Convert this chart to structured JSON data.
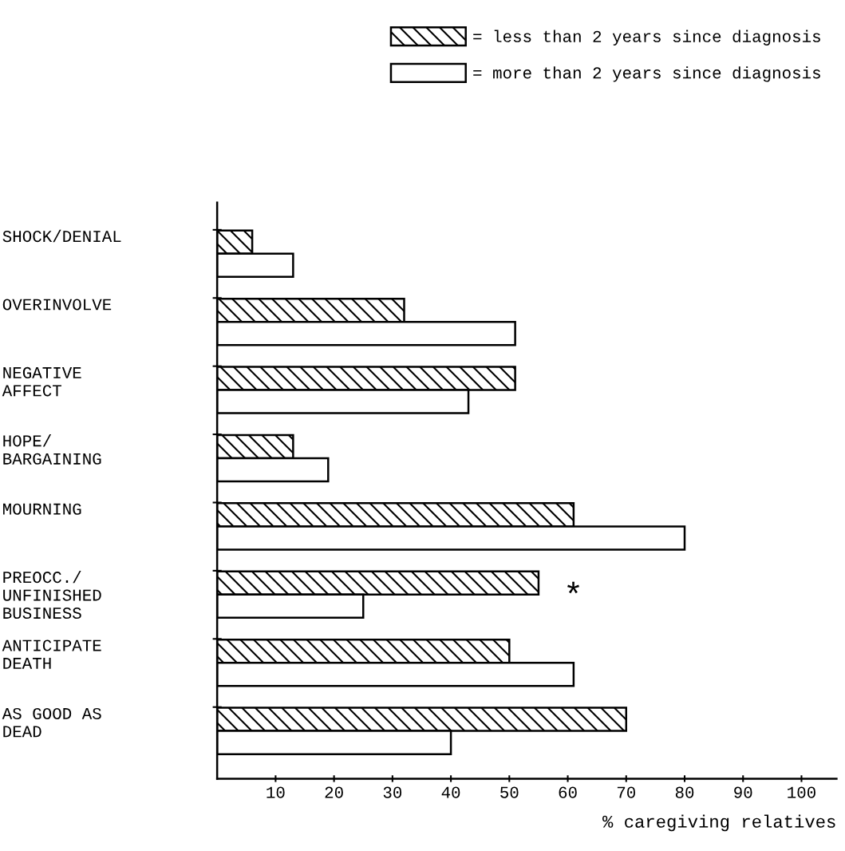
{
  "chart_data": {
    "type": "bar",
    "orientation": "horizontal",
    "categories": [
      "SHOCK/DENIAL",
      "OVERINVOLVE",
      "NEGATIVE\nAFFECT",
      "HOPE/\nBARGAINING",
      "MOURNING",
      "PREOCC./\nUNFINISHED\nBUSINESS",
      "ANTICIPATE\nDEATH",
      "AS GOOD AS\nDEAD"
    ],
    "series": [
      {
        "name": "= less than 2 years since diagnosis",
        "color": "#000000",
        "values": [
          6,
          32,
          51,
          13,
          61,
          55,
          50,
          70
        ]
      },
      {
        "name": "= more than 2 years since diagnosis",
        "color": "#ffffff",
        "values": [
          13,
          51,
          43,
          19,
          80,
          25,
          61,
          40
        ]
      }
    ],
    "xlabel": "% caregiving relatives",
    "xlim": [
      0,
      106
    ],
    "xticks": [
      10,
      20,
      30,
      40,
      50,
      60,
      70,
      80,
      90,
      100
    ],
    "annotations": [
      "*"
    ],
    "legend": "top",
    "grid": false
  }
}
